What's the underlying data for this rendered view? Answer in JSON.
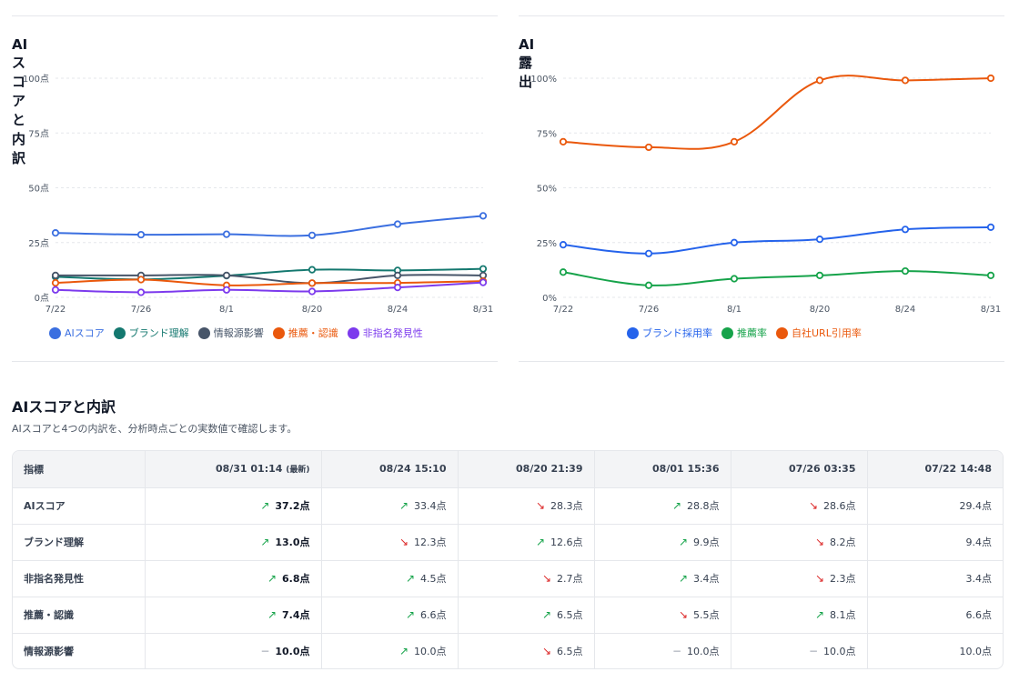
{
  "charts": {
    "score": {
      "title": "AIスコアと内訳",
      "chart_data": {
        "type": "line",
        "categories": [
          "7/22",
          "7/26",
          "8/1",
          "8/20",
          "8/24",
          "8/31"
        ],
        "ylim": [
          0,
          100
        ],
        "yticks": [
          0,
          25,
          50,
          75,
          100
        ],
        "ytick_labels": [
          "0点",
          "25点",
          "50点",
          "75点",
          "100点"
        ],
        "grid": "horizontal dashed",
        "legend_position": "bottom",
        "series": [
          {
            "name": "AIスコア",
            "color": "#3b6fe0",
            "values": [
              29.4,
              28.6,
              28.8,
              28.3,
              33.4,
              37.2
            ]
          },
          {
            "name": "ブランド理解",
            "color": "#14786f",
            "values": [
              9.4,
              8.2,
              9.9,
              12.6,
              12.3,
              13.0
            ]
          },
          {
            "name": "情報源影響",
            "color": "#475569",
            "values": [
              10.0,
              10.0,
              10.0,
              6.5,
              10.0,
              10.0
            ]
          },
          {
            "name": "推薦・認識",
            "color": "#ea580c",
            "values": [
              6.6,
              8.1,
              5.5,
              6.5,
              6.6,
              7.4
            ]
          },
          {
            "name": "非指名発見性",
            "color": "#7c3aed",
            "values": [
              3.4,
              2.3,
              3.4,
              2.7,
              4.5,
              6.8
            ]
          }
        ]
      }
    },
    "exposure": {
      "title": "AI露出",
      "chart_data": {
        "type": "line",
        "categories": [
          "7/22",
          "7/26",
          "8/1",
          "8/20",
          "8/24",
          "8/31"
        ],
        "ylim": [
          0,
          100
        ],
        "yticks": [
          0,
          25,
          50,
          75,
          100
        ],
        "ytick_labels": [
          "0%",
          "25%",
          "50%",
          "75%",
          "100%"
        ],
        "grid": "horizontal dashed",
        "legend_position": "bottom",
        "series": [
          {
            "name": "ブランド採用率",
            "color": "#2563eb",
            "values": [
              24,
              20,
              25,
              26.5,
              31,
              32
            ]
          },
          {
            "name": "推薦率",
            "color": "#16a34a",
            "values": [
              11.5,
              5.5,
              8.5,
              10,
              12,
              10
            ]
          },
          {
            "name": "自社URL引用率",
            "color": "#ea580c",
            "values": [
              71,
              68.5,
              71,
              99,
              99,
              100
            ]
          }
        ]
      }
    }
  },
  "table_section": {
    "title": "AIスコアと内訳",
    "description": "AIスコアと4つの内訳を、分析時点ごとの実数値で確認します。",
    "header_metric": "指標",
    "latest_tag": "(最新)",
    "columns": [
      "08/31 01:14",
      "08/24 15:10",
      "08/20 21:39",
      "08/01 15:36",
      "07/26 03:35",
      "07/22 14:48"
    ],
    "rows": [
      {
        "metric": "AIスコア",
        "cells": [
          {
            "value": "37.2点",
            "trend": "up"
          },
          {
            "value": "33.4点",
            "trend": "up"
          },
          {
            "value": "28.3点",
            "trend": "down"
          },
          {
            "value": "28.8点",
            "trend": "up"
          },
          {
            "value": "28.6点",
            "trend": "down"
          },
          {
            "value": "29.4点",
            "trend": "none"
          }
        ]
      },
      {
        "metric": "ブランド理解",
        "cells": [
          {
            "value": "13.0点",
            "trend": "up"
          },
          {
            "value": "12.3点",
            "trend": "down"
          },
          {
            "value": "12.6点",
            "trend": "up"
          },
          {
            "value": "9.9点",
            "trend": "up"
          },
          {
            "value": "8.2点",
            "trend": "down"
          },
          {
            "value": "9.4点",
            "trend": "none"
          }
        ]
      },
      {
        "metric": "非指名発見性",
        "cells": [
          {
            "value": "6.8点",
            "trend": "up"
          },
          {
            "value": "4.5点",
            "trend": "up"
          },
          {
            "value": "2.7点",
            "trend": "down"
          },
          {
            "value": "3.4点",
            "trend": "up"
          },
          {
            "value": "2.3点",
            "trend": "down"
          },
          {
            "value": "3.4点",
            "trend": "none"
          }
        ]
      },
      {
        "metric": "推薦・認識",
        "cells": [
          {
            "value": "7.4点",
            "trend": "up"
          },
          {
            "value": "6.6点",
            "trend": "up"
          },
          {
            "value": "6.5点",
            "trend": "up"
          },
          {
            "value": "5.5点",
            "trend": "down"
          },
          {
            "value": "8.1点",
            "trend": "up"
          },
          {
            "value": "6.6点",
            "trend": "none"
          }
        ]
      },
      {
        "metric": "情報源影響",
        "cells": [
          {
            "value": "10.0点",
            "trend": "flat"
          },
          {
            "value": "10.0点",
            "trend": "up"
          },
          {
            "value": "6.5点",
            "trend": "down"
          },
          {
            "value": "10.0点",
            "trend": "flat"
          },
          {
            "value": "10.0点",
            "trend": "flat"
          },
          {
            "value": "10.0点",
            "trend": "none"
          }
        ]
      }
    ]
  },
  "colors": {
    "up_arrow": "#16a34a",
    "down_arrow": "#dc2626",
    "flat_arrow": "#9ca3af",
    "grid": "#e5e7eb"
  }
}
